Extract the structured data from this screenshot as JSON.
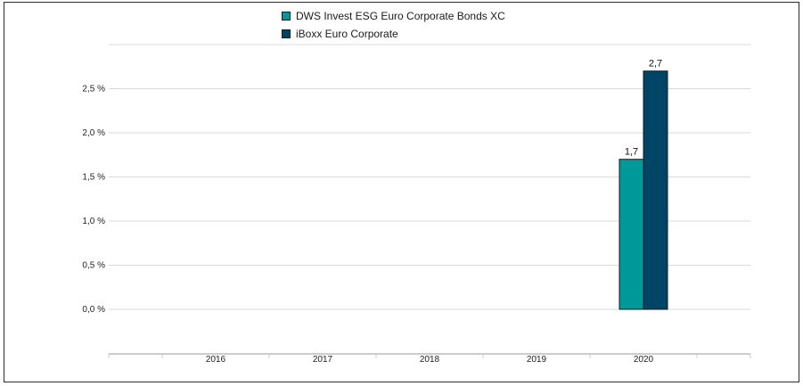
{
  "chart_data": {
    "type": "bar",
    "categories": [
      "2016",
      "2017",
      "2018",
      "2019",
      "2020"
    ],
    "series": [
      {
        "name": "DWS Invest ESG Euro Corporate Bonds  XC",
        "color": "#00999a",
        "values": [
          null,
          null,
          null,
          null,
          1.7
        ],
        "labels": [
          "",
          "",
          "",
          "",
          "1,7"
        ]
      },
      {
        "name": "iBoxx Euro Corporate",
        "color": "#004466",
        "values": [
          null,
          null,
          null,
          null,
          2.7
        ],
        "labels": [
          "",
          "",
          "",
          "",
          "2,7"
        ]
      }
    ],
    "yticks": [
      {
        "value": 0.0,
        "label": "0,0 %"
      },
      {
        "value": 0.5,
        "label": "0,5 %"
      },
      {
        "value": 1.0,
        "label": "1,0 %"
      },
      {
        "value": 1.5,
        "label": "1,5 %"
      },
      {
        "value": 2.0,
        "label": "2,0 %"
      },
      {
        "value": 2.5,
        "label": "2,5 %"
      }
    ],
    "ylim": [
      0,
      3.0
    ],
    "grid": true,
    "legend_position": "top-center"
  }
}
